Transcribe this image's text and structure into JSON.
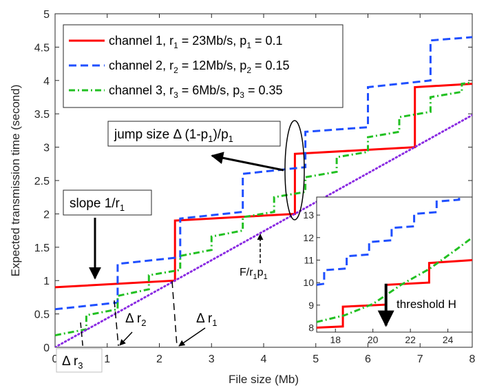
{
  "chart_data": {
    "type": "line",
    "xlabel": "File size (Mb)",
    "ylabel": "Expected transmission time (second)",
    "xlim": [
      0,
      8
    ],
    "ylim": [
      0,
      5
    ],
    "xticks": [
      0,
      1,
      2,
      3,
      4,
      5,
      6,
      7,
      8
    ],
    "yticks": [
      0,
      0.5,
      1,
      1.5,
      2,
      2.5,
      3,
      3.5,
      4,
      4.5,
      5
    ],
    "xtick_labels": [
      "0",
      "1",
      "2",
      "3",
      "4",
      "5",
      "6",
      "7",
      "8"
    ],
    "ytick_labels": [
      "0",
      "0.5",
      "1",
      "1.5",
      "2",
      "2.5",
      "3",
      "3.5",
      "4",
      "4.5",
      "5"
    ],
    "legend": {
      "placement": "top-left",
      "entries": [
        {
          "prefix": "channel 1, r",
          "sub1": "1",
          "mid": " = 23Mb/s, p",
          "sub2": "1",
          "suffix": " = 0.1"
        },
        {
          "prefix": "channel 2, r",
          "sub1": "2",
          "mid": " = 12Mb/s, p",
          "sub2": "2",
          "suffix": " = 0.15"
        },
        {
          "prefix": "channel 3, r",
          "sub1": "3",
          "mid": " = 6Mb/s, p",
          "sub2": "3",
          "suffix": " = 0.35"
        }
      ]
    },
    "series": [
      {
        "name": "channel 1",
        "color": "#ff0000",
        "style": "solid",
        "points": [
          [
            0,
            0.9
          ],
          [
            2.3,
            1.0
          ],
          [
            2.3,
            1.9
          ],
          [
            4.6,
            2.0
          ],
          [
            4.6,
            2.9
          ],
          [
            6.9,
            3.0
          ],
          [
            6.9,
            3.9
          ],
          [
            8,
            3.95
          ]
        ]
      },
      {
        "name": "channel 2",
        "color": "#1f4fff",
        "style": "dashed",
        "points": [
          [
            0,
            0.57
          ],
          [
            1.2,
            0.67
          ],
          [
            1.2,
            1.25
          ],
          [
            2.4,
            1.35
          ],
          [
            2.4,
            1.93
          ],
          [
            3.6,
            2.03
          ],
          [
            3.6,
            2.6
          ],
          [
            4.8,
            2.7
          ],
          [
            4.8,
            3.23
          ],
          [
            6,
            3.3
          ],
          [
            6,
            3.9
          ],
          [
            7.2,
            4.0
          ],
          [
            7.2,
            4.6
          ],
          [
            8,
            4.65
          ]
        ]
      },
      {
        "name": "channel 3",
        "color": "#22c022",
        "style": "dashdot",
        "points": [
          [
            0,
            0.18
          ],
          [
            0.6,
            0.27
          ],
          [
            0.6,
            0.48
          ],
          [
            1.2,
            0.57
          ],
          [
            1.2,
            0.77
          ],
          [
            1.8,
            0.87
          ],
          [
            1.8,
            1.08
          ],
          [
            2.4,
            1.16
          ],
          [
            2.4,
            1.37
          ],
          [
            3.0,
            1.46
          ],
          [
            3.0,
            1.66
          ],
          [
            3.6,
            1.75
          ],
          [
            3.6,
            1.95
          ],
          [
            4.2,
            2.03
          ],
          [
            4.2,
            2.25
          ],
          [
            4.8,
            2.33
          ],
          [
            4.8,
            2.55
          ],
          [
            5.4,
            2.63
          ],
          [
            5.4,
            2.85
          ],
          [
            6.0,
            2.93
          ],
          [
            6.0,
            3.15
          ],
          [
            6.6,
            3.23
          ],
          [
            6.6,
            3.45
          ],
          [
            7.2,
            3.53
          ],
          [
            7.2,
            3.75
          ],
          [
            7.8,
            3.83
          ],
          [
            7.8,
            3.95
          ],
          [
            8,
            3.97
          ]
        ]
      },
      {
        "name": "F/r1p1",
        "color": "#8a2be2",
        "style": "dotted",
        "points": [
          [
            0,
            0
          ],
          [
            8,
            3.48
          ]
        ]
      }
    ],
    "annotations": {
      "jump": {
        "text": "jump size Δ (1-p",
        "sub": "1",
        "tail": ")/p",
        "sub2": "1"
      },
      "slope": {
        "text": "slope 1/r",
        "sub": "1"
      },
      "fr": {
        "text": "F/r",
        "sub": "1",
        "mid": "p",
        "sub2": "1"
      },
      "dr1": {
        "text": "Δ r",
        "sub": "1"
      },
      "dr2": {
        "text": "Δ r",
        "sub": "2"
      },
      "dr3": {
        "text": "Δ r",
        "sub": "3"
      }
    },
    "inset": {
      "xlim": [
        17,
        25.3
      ],
      "ylim": [
        7.8,
        13.8
      ],
      "xticks": [
        18,
        20,
        22,
        24
      ],
      "yticks": [
        8,
        9,
        10,
        11,
        12,
        13
      ],
      "xtick_labels": [
        "18",
        "20",
        "22",
        "24"
      ],
      "ytick_labels": [
        "8",
        "9",
        "10",
        "11",
        "12",
        "13"
      ],
      "annotation": "threshold H",
      "threshold_x": 20.7,
      "series": [
        {
          "name": "channel 1",
          "color": "#ff0000",
          "style": "solid",
          "points": [
            [
              17,
              8.0
            ],
            [
              18.4,
              8.05
            ],
            [
              18.4,
              8.93
            ],
            [
              20.7,
              9.02
            ],
            [
              20.7,
              9.9
            ],
            [
              23,
              10.0
            ],
            [
              23,
              10.87
            ],
            [
              25.3,
              11.0
            ]
          ]
        },
        {
          "name": "channel 2",
          "color": "#1f4fff",
          "style": "dashed",
          "points": [
            [
              17,
              9.9
            ],
            [
              17.4,
              9.95
            ],
            [
              17.4,
              10.55
            ],
            [
              18.6,
              10.63
            ],
            [
              18.6,
              11.17
            ],
            [
              19.8,
              11.25
            ],
            [
              19.8,
              11.8
            ],
            [
              21,
              11.88
            ],
            [
              21,
              12.43
            ],
            [
              22.2,
              12.5
            ],
            [
              22.2,
              13.05
            ],
            [
              23.4,
              13.13
            ],
            [
              23.4,
              13.6
            ],
            [
              24.6,
              13.68
            ],
            [
              24.6,
              13.8
            ]
          ]
        },
        {
          "name": "channel 3",
          "color": "#22c022",
          "style": "dashdot",
          "points": [
            [
              17,
              8.25
            ],
            [
              18.5,
              8.55
            ],
            [
              20,
              9.05
            ],
            [
              21.5,
              9.9
            ],
            [
              23,
              10.6
            ],
            [
              24.5,
              11.5
            ],
            [
              25.3,
              12.0
            ]
          ]
        }
      ]
    }
  }
}
